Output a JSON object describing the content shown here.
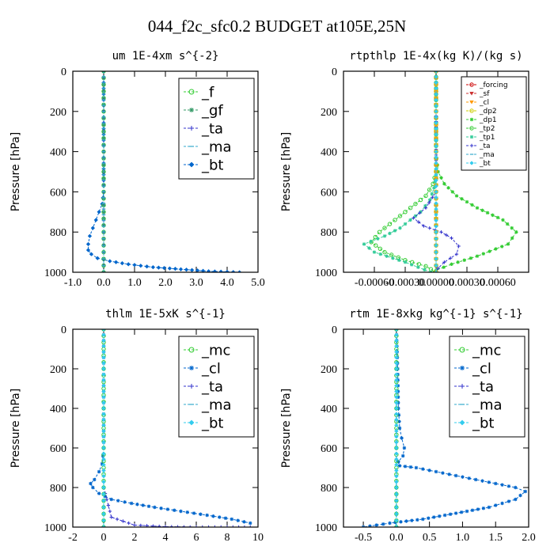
{
  "figure": {
    "title": "044_f2c_sfc0.2  BUDGET at105E,25N"
  },
  "chart_data": [
    {
      "type": "line",
      "title": "um  1E-4xm s^{-2}",
      "ylabel": "Pressure [hPa]",
      "xlabel": "",
      "xlim": [
        -1.0,
        5.0
      ],
      "ylim": [
        0,
        1000
      ],
      "y_inverted": true,
      "xticks": [
        -1.0,
        0.0,
        1.0,
        2.0,
        3.0,
        4.0,
        5.0
      ],
      "xtick_labels": [
        "-1.0",
        "0.0",
        "1.0",
        "2.0",
        "3.0",
        "4.0",
        "5.0"
      ],
      "yticks": [
        0,
        200,
        400,
        600,
        800,
        1000
      ],
      "ytick_labels": [
        "0",
        "200",
        "400",
        "600",
        "800",
        "1000"
      ],
      "legend_position": "top-right",
      "legend_size": "large",
      "series": [
        {
          "name": "_f",
          "color": "#33cc33",
          "marker": "circle",
          "x": [
            0,
            0,
            0,
            0,
            0,
            0,
            0,
            0,
            0,
            0,
            0
          ],
          "y": [
            0,
            100,
            200,
            300,
            400,
            500,
            600,
            700,
            800,
            900,
            1000
          ]
        },
        {
          "name": "_gf",
          "color": "#339966",
          "marker": "star",
          "x": [
            0,
            0,
            0,
            0,
            0,
            0,
            0,
            0,
            0,
            0,
            0
          ],
          "y": [
            0,
            100,
            200,
            300,
            400,
            500,
            600,
            700,
            800,
            900,
            1000
          ]
        },
        {
          "name": "_ta",
          "color": "#3333cc",
          "marker": "plus",
          "x": [
            0,
            0,
            0,
            0,
            0,
            0,
            0
          ],
          "y": [
            0,
            200,
            400,
            600,
            800,
            900,
            1000
          ]
        },
        {
          "name": "_ma",
          "color": "#33aacc",
          "marker": "dash",
          "x": [
            0,
            0,
            0,
            0,
            0,
            0,
            0
          ],
          "y": [
            0,
            200,
            400,
            600,
            800,
            900,
            1000
          ]
        },
        {
          "name": "_bt",
          "color": "#0066cc",
          "marker": "diamond",
          "x": [
            0,
            0,
            0,
            0,
            -0.05,
            -0.15,
            -0.25,
            -0.35,
            -0.45,
            -0.5,
            -0.5,
            -0.4,
            -0.2,
            0.2,
            0.8,
            1.6,
            2.5,
            3.4,
            4.4
          ],
          "y": [
            0,
            200,
            400,
            600,
            660,
            700,
            740,
            780,
            820,
            860,
            890,
            910,
            930,
            945,
            960,
            975,
            985,
            995,
            1000
          ]
        }
      ]
    },
    {
      "type": "line",
      "title": "rtpthlp  1E-4x(kg K)/(kg s)",
      "ylabel": "Pressure [hPa]",
      "xlabel": "",
      "xlim": [
        -0.0009,
        0.0009
      ],
      "ylim": [
        0,
        1000
      ],
      "y_inverted": true,
      "xticks": [
        -0.0006,
        -0.0003,
        0.0,
        0.0003,
        0.0006
      ],
      "xtick_labels": [
        "-0.00060",
        "-0.00030",
        "0.00000",
        "0.00030",
        "0.00060"
      ],
      "yticks": [
        0,
        200,
        400,
        600,
        800,
        1000
      ],
      "ytick_labels": [
        "0",
        "200",
        "400",
        "600",
        "800",
        "1000"
      ],
      "legend_position": "top-right",
      "legend_size": "small",
      "series": [
        {
          "name": "_forcing",
          "color": "#cc0000",
          "marker": "circle",
          "x": [
            0,
            0,
            0,
            0,
            0,
            0,
            0,
            0,
            0,
            0,
            0
          ],
          "y": [
            0,
            100,
            200,
            300,
            400,
            500,
            600,
            700,
            800,
            900,
            1000
          ]
        },
        {
          "name": "_sf",
          "color": "#cc3333",
          "marker": "triangle",
          "x": [
            0,
            0,
            0,
            0,
            0,
            0,
            0,
            0,
            0,
            0,
            0
          ],
          "y": [
            0,
            100,
            200,
            300,
            400,
            500,
            600,
            700,
            800,
            900,
            1000
          ]
        },
        {
          "name": "_cl",
          "color": "#ff9900",
          "marker": "triangle",
          "x": [
            0,
            0,
            0,
            0,
            0,
            0,
            0,
            0,
            0,
            0,
            0
          ],
          "y": [
            0,
            100,
            200,
            300,
            400,
            500,
            600,
            700,
            800,
            900,
            1000
          ]
        },
        {
          "name": "_dp2",
          "color": "#cccc00",
          "marker": "circle",
          "x": [
            0,
            0,
            0,
            0,
            0,
            0,
            0,
            0,
            0,
            0,
            0
          ],
          "y": [
            0,
            100,
            200,
            300,
            400,
            500,
            600,
            700,
            800,
            900,
            1000
          ]
        },
        {
          "name": "_dp1",
          "color": "#33cc33",
          "marker": "star",
          "x": [
            0,
            0,
            0,
            2e-05,
            8e-05,
            0.0002,
            0.0004,
            0.00065,
            0.00078,
            0.0007,
            0.0004,
            0.00015,
            0,
            -2e-05
          ],
          "y": [
            0,
            200,
            400,
            500,
            560,
            620,
            680,
            740,
            800,
            860,
            920,
            960,
            990,
            1000
          ]
        },
        {
          "name": "_tp2",
          "color": "#33cc33",
          "marker": "circle",
          "x": [
            0,
            0,
            0,
            -3e-05,
            -0.0001,
            -0.00025,
            -0.0004,
            -0.00055,
            -0.00063,
            -0.0005,
            -0.0003,
            -0.0001,
            0
          ],
          "y": [
            0,
            400,
            500,
            560,
            620,
            680,
            740,
            800,
            850,
            900,
            940,
            970,
            1000
          ]
        },
        {
          "name": "_tp1",
          "color": "#33cc99",
          "marker": "star",
          "x": [
            0,
            0,
            0,
            -2e-05,
            -6e-05,
            -0.00015,
            -0.00025,
            -0.00035,
            -0.0005,
            -0.0007,
            -0.0006,
            -0.0003,
            -5e-05
          ],
          "y": [
            0,
            400,
            520,
            580,
            640,
            700,
            740,
            780,
            820,
            860,
            900,
            950,
            1000
          ]
        },
        {
          "name": "_ta",
          "color": "#3333cc",
          "marker": "plus",
          "x": [
            0,
            0,
            0,
            -0.0001,
            -0.00022,
            -0.00012,
            5e-05,
            0.00015,
            0.00022,
            0.0002,
            8e-05,
            2e-05,
            0
          ],
          "y": [
            0,
            500,
            600,
            680,
            730,
            770,
            800,
            830,
            870,
            910,
            950,
            980,
            1000
          ]
        },
        {
          "name": "_ma",
          "color": "#33aacc",
          "marker": "dash",
          "x": [
            0,
            0,
            0,
            0,
            0,
            0,
            0
          ],
          "y": [
            0,
            200,
            400,
            600,
            800,
            900,
            1000
          ]
        },
        {
          "name": "_bt",
          "color": "#33ccee",
          "marker": "diamond",
          "x": [
            0,
            0,
            0,
            0,
            0,
            0,
            0
          ],
          "y": [
            0,
            200,
            400,
            600,
            800,
            900,
            1000
          ]
        }
      ]
    },
    {
      "type": "line",
      "title": "thlm  1E-5xK s^{-1}",
      "ylabel": "Pressure [hPa]",
      "xlabel": "",
      "xlim": [
        -2,
        10
      ],
      "ylim": [
        0,
        1000
      ],
      "y_inverted": true,
      "xticks": [
        -2,
        0,
        2,
        4,
        6,
        8,
        10
      ],
      "xtick_labels": [
        "-2",
        "0",
        "2",
        "4",
        "6",
        "8",
        "10"
      ],
      "yticks": [
        0,
        200,
        400,
        600,
        800,
        1000
      ],
      "ytick_labels": [
        "0",
        "200",
        "400",
        "600",
        "800",
        "1000"
      ],
      "legend_position": "top-right",
      "legend_size": "large",
      "series": [
        {
          "name": "_mc",
          "color": "#33cc33",
          "marker": "circle",
          "x": [
            0,
            0,
            0,
            0,
            0,
            0,
            0,
            0,
            0,
            0,
            0
          ],
          "y": [
            0,
            100,
            200,
            300,
            400,
            500,
            600,
            700,
            800,
            900,
            1000
          ]
        },
        {
          "name": "_cl",
          "color": "#0066cc",
          "marker": "star",
          "x": [
            0,
            0,
            0,
            0,
            -0.1,
            -0.3,
            -0.6,
            -0.85,
            -0.7,
            -0.3,
            0.5,
            1.8,
            3.3,
            5,
            6.7,
            8.3,
            9.5
          ],
          "y": [
            0,
            200,
            400,
            600,
            680,
            720,
            760,
            780,
            800,
            830,
            860,
            880,
            900,
            920,
            940,
            960,
            980
          ]
        },
        {
          "name": "_ta",
          "color": "#3333cc",
          "marker": "plus",
          "x": [
            0,
            0,
            0,
            0,
            0,
            0.5,
            2,
            4,
            6,
            8,
            9.5
          ],
          "y": [
            0,
            200,
            400,
            600,
            800,
            950,
            990,
            998,
            1000,
            1000,
            1000
          ]
        },
        {
          "name": "_ma",
          "color": "#33aacc",
          "marker": "dash",
          "x": [
            0,
            0,
            0,
            0,
            0,
            0,
            0
          ],
          "y": [
            0,
            200,
            400,
            600,
            800,
            900,
            1000
          ]
        },
        {
          "name": "_bt",
          "color": "#33ccee",
          "marker": "diamond",
          "x": [
            0,
            0,
            0,
            0,
            0,
            0,
            0
          ],
          "y": [
            0,
            200,
            400,
            600,
            800,
            900,
            1000
          ]
        }
      ]
    },
    {
      "type": "line",
      "title": "rtm  1E-8xkg kg^{-1} s^{-1}",
      "ylabel": "Pressure [hPa]",
      "xlabel": "",
      "xlim": [
        -0.8,
        2.0
      ],
      "ylim": [
        0,
        1000
      ],
      "y_inverted": true,
      "xticks": [
        -0.5,
        0.0,
        0.5,
        1.0,
        1.5,
        2.0
      ],
      "xtick_labels": [
        "-0.5",
        "0.0",
        "0.5",
        "1.0",
        "1.5",
        "2.0"
      ],
      "yticks": [
        0,
        200,
        400,
        600,
        800,
        1000
      ],
      "ytick_labels": [
        "0",
        "200",
        "400",
        "600",
        "800",
        "1000"
      ],
      "legend_position": "top-right",
      "legend_size": "large",
      "series": [
        {
          "name": "_mc",
          "color": "#33cc33",
          "marker": "circle",
          "x": [
            0,
            0,
            0,
            0,
            0,
            0,
            0,
            0,
            0,
            0,
            0
          ],
          "y": [
            0,
            100,
            200,
            300,
            400,
            500,
            600,
            700,
            800,
            900,
            1000
          ]
        },
        {
          "name": "_cl",
          "color": "#0066cc",
          "marker": "star",
          "x": [
            0,
            0.02,
            0.03,
            0.05,
            0.08,
            0.12,
            0.1,
            0.03,
            0.05,
            0.3,
            0.6,
            0.9,
            1.2,
            1.5,
            1.8,
            1.95,
            1.8,
            1.4,
            0.9,
            0.4,
            -0.1,
            -0.5
          ],
          "y": [
            0,
            200,
            400,
            500,
            550,
            600,
            640,
            670,
            690,
            700,
            720,
            740,
            760,
            780,
            800,
            820,
            860,
            900,
            930,
            960,
            980,
            1000
          ]
        },
        {
          "name": "_ta",
          "color": "#3333cc",
          "marker": "plus",
          "x": [
            0,
            0,
            0,
            0,
            0,
            0,
            0
          ],
          "y": [
            0,
            200,
            400,
            600,
            800,
            900,
            1000
          ]
        },
        {
          "name": "_ma",
          "color": "#33aacc",
          "marker": "dash",
          "x": [
            0,
            0,
            0,
            0,
            0,
            0,
            0
          ],
          "y": [
            0,
            200,
            400,
            600,
            800,
            900,
            1000
          ]
        },
        {
          "name": "_bt",
          "color": "#33ccee",
          "marker": "diamond",
          "x": [
            0,
            0,
            0,
            0,
            0,
            0,
            0
          ],
          "y": [
            0,
            200,
            400,
            600,
            800,
            900,
            1000
          ]
        }
      ]
    }
  ]
}
